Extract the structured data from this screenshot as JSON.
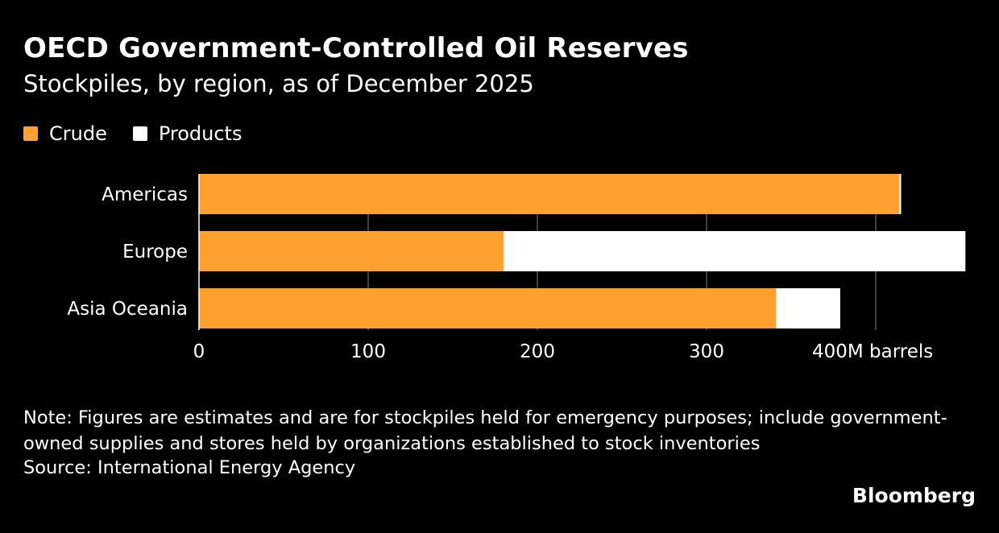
{
  "title": "OECD Government-Controlled Oil Reserves",
  "subtitle": "Stockpiles, by region, as of December 2025",
  "legend": [
    {
      "label": "Crude",
      "color": "#FFA02F"
    },
    {
      "label": "Products",
      "color": "#FFFFFF"
    }
  ],
  "note": "Note: Figures are estimates and are for stockpiles held for emergency purposes; include government-owned supplies and stores held by organizations established to stock inventories",
  "source": "Source: International Energy Agency",
  "brand": "Bloomberg",
  "chart_data": {
    "type": "bar",
    "orientation": "horizontal",
    "stacked": true,
    "categories": [
      "Americas",
      "Europe",
      "Asia Oceania"
    ],
    "series": [
      {
        "name": "Crude",
        "color": "#FFA02F",
        "values": [
          414,
          180,
          341
        ]
      },
      {
        "name": "Products",
        "color": "#FFFFFF",
        "values": [
          1,
          273,
          38
        ]
      }
    ],
    "x_ticks": [
      {
        "value": 0,
        "label": "0"
      },
      {
        "value": 100,
        "label": "100"
      },
      {
        "value": 200,
        "label": "200"
      },
      {
        "value": 300,
        "label": "300"
      },
      {
        "value": 400,
        "label": "400M barrels"
      }
    ],
    "xlim": [
      0,
      453
    ],
    "grid": true,
    "legend_position": "top-left"
  }
}
